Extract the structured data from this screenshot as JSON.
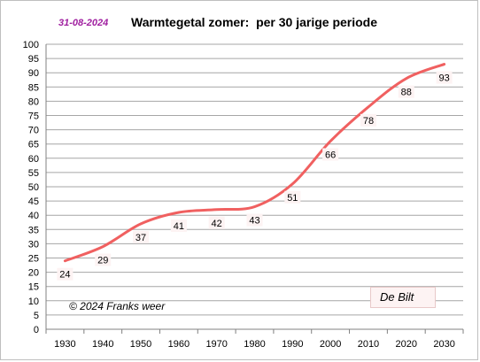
{
  "header": {
    "date": "31-08-2024",
    "title": "Warmtegetal zomer:  per 30 jarige periode"
  },
  "annotations": {
    "copyright": "© 2024 Franks weer",
    "station": "De Bilt"
  },
  "colors": {
    "line": "#f06060",
    "label_bg": "#fdf3f3",
    "grid": "#a6a6a6",
    "date": "#a020a0"
  },
  "chart_data": {
    "type": "line",
    "title": "Warmtegetal zomer:  per 30 jarige periode",
    "xlabel": "",
    "ylabel": "",
    "x": [
      1930,
      1940,
      1950,
      1960,
      1970,
      1980,
      1990,
      2000,
      2010,
      2020,
      2030
    ],
    "series": [
      {
        "values": [
          24,
          29,
          37,
          41,
          42,
          43,
          51,
          66,
          78,
          88,
          93
        ]
      }
    ],
    "data_labels": [
      "24",
      "29",
      "37",
      "41",
      "42",
      "43",
      "51",
      "66",
      "78",
      "88",
      "93"
    ],
    "ylim": [
      0,
      100
    ],
    "ytick_step": 5,
    "xticks": [
      "1930",
      "1940",
      "1950",
      "1960",
      "1970",
      "1980",
      "1990",
      "2000",
      "2010",
      "2020",
      "2030"
    ],
    "grid": true,
    "legend": "none"
  }
}
